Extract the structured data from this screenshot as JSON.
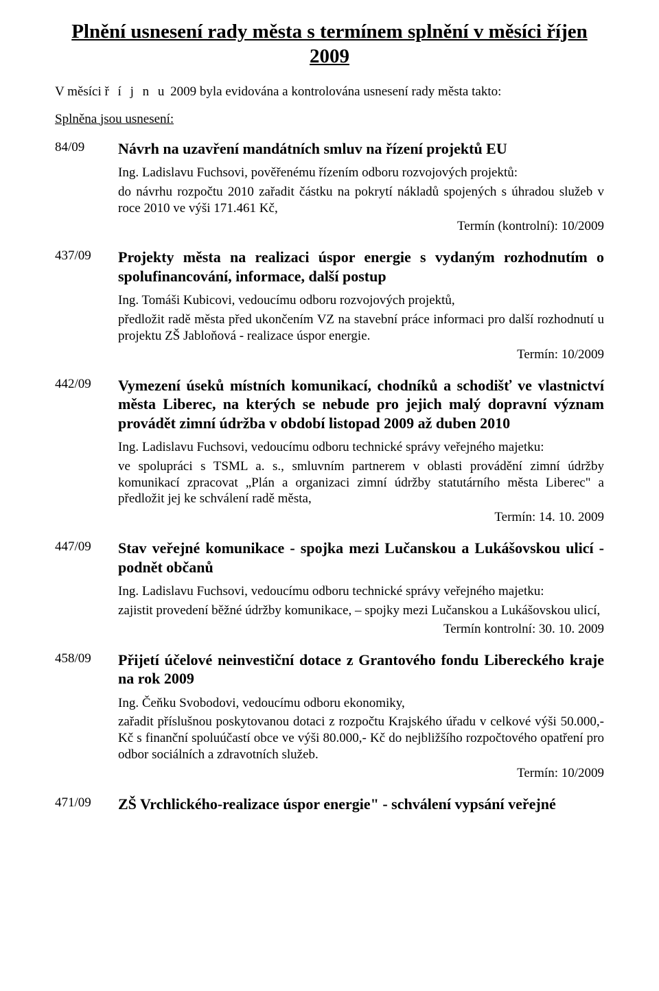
{
  "title": "Plnění usnesení rady města s termínem splnění v měsíci říjen 2009",
  "intro_prefix": "V měsíci ",
  "intro_month_spaced": "ř í j n u",
  "intro_suffix": " 2009 byla evidována a kontrolována usnesení rady města takto:",
  "section_heading": "Splněna jsou usnesení:",
  "items": {
    "0": {
      "num": "84/09",
      "title": "Návrh na uzavření mandátních smluv na řízení projektů EU",
      "p1": "Ing. Ladislavu Fuchsovi, pověřenému řízením odboru rozvojových projektů:",
      "p2": "do návrhu rozpočtu 2010 zařadit částku na pokrytí nákladů spojených s úhradou služeb v roce 2010 ve výši 171.461 Kč,",
      "term": "Termín (kontrolní): 10/2009"
    },
    "1": {
      "num": "437/09",
      "title": "Projekty města na realizaci úspor energie s vydaným rozhodnutím o spolufinancování, informace, další postup",
      "p1": "Ing. Tomáši Kubicovi, vedoucímu odboru rozvojových projektů,",
      "p2": "předložit radě města před ukončením VZ na stavební práce informaci pro další rozhodnutí u projektu ZŠ Jabloňová - realizace úspor energie.",
      "term": "Termín: 10/2009"
    },
    "2": {
      "num": "442/09",
      "title": "Vymezení úseků místních komunikací, chodníků a schodišť ve vlastnictví města Liberec, na kterých se nebude pro jejich malý dopravní význam provádět zimní údržba v období listopad 2009 až duben 2010",
      "p1": "Ing. Ladislavu Fuchsovi, vedoucímu odboru technické správy veřejného majetku:",
      "p2": "ve spolupráci s TSML a. s., smluvním partnerem v oblasti provádění zimní údržby komunikací zpracovat „Plán a organizaci zimní údržby statutárního města Liberec\" a předložit jej ke schválení radě města,",
      "term": "Termín: 14. 10. 2009"
    },
    "3": {
      "num": "447/09",
      "title": "Stav veřejné komunikace - spojka mezi Lučanskou a Lukášovskou ulicí - podnět občanů",
      "p1": "Ing. Ladislavu Fuchsovi, vedoucímu odboru technické správy veřejného majetku:",
      "p2": "zajistit provedení běžné údržby komunikace, – spojky mezi Lučanskou a Lukášovskou ulicí,",
      "term": "Termín kontrolní: 30. 10. 2009"
    },
    "4": {
      "num": "458/09",
      "title": "Přijetí účelové neinvestiční dotace z Grantového fondu Libereckého kraje na rok 2009",
      "p1": "Ing. Čeňku Svobodovi, vedoucímu odboru ekonomiky,",
      "p2": "zařadit příslušnou poskytovanou dotaci z rozpočtu Krajského úřadu v celkové výši 50.000,- Kč s finanční spoluúčastí obce ve výši 80.000,- Kč do nejbližšího rozpočtového opatření pro odbor sociálních a zdravotních služeb.",
      "term": "Termín: 10/2009"
    },
    "5": {
      "num": "471/09",
      "title": "ZŠ Vrchlického-realizace úspor energie\" - schválení vypsání veřejné"
    }
  }
}
